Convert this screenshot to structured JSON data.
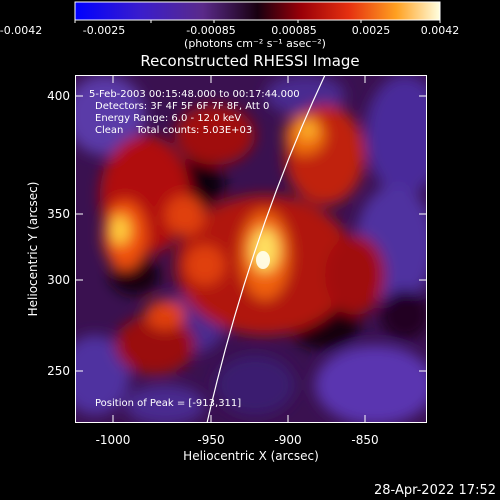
{
  "colorbar": {
    "ticks": [
      "-0.0042",
      "-0.0025",
      "-0.00085",
      "0.00085",
      "0.0025",
      "0.0042"
    ],
    "unit_text": "(photons cm⁻² s⁻¹ asec⁻²)"
  },
  "title": "Reconstructed RHESSI Image",
  "annotations": {
    "time": "5-Feb-2003 00:15:48.000 to 00:17:44.000",
    "detectors": "Detectors: 3F 4F 5F 6F 7F 8F, Att 0",
    "energy": "Energy Range: 6.0 - 12.0 keV",
    "clean": "Clean    Total counts: 5.03E+03",
    "peak": "Position of Peak = [-913,311]"
  },
  "axes": {
    "xlabel": "Heliocentric X (arcsec)",
    "ylabel": "Heliocentric Y (arcsec)",
    "xticks": [
      "-1000",
      "-950",
      "-900",
      "-850"
    ],
    "yticks": [
      "400",
      "350",
      "300",
      "250"
    ]
  },
  "timestamp": "28-Apr-2022 17:52",
  "colors": {
    "background": "#000000",
    "limb": "#ffffff",
    "axis": "#ffffff"
  }
}
